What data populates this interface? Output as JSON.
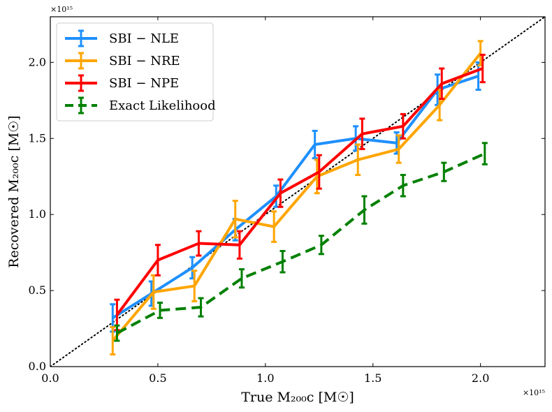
{
  "chart_data": {
    "type": "line",
    "title": "",
    "xlabel": "True M₂₀₀c [M☉]",
    "ylabel": "Recovered M₂₀₀c [M☉]",
    "x_exponent_label": "×10¹⁵",
    "y_exponent_label": "×10¹⁵",
    "xlim": [
      0,
      2.3
    ],
    "ylim": [
      0,
      2.3
    ],
    "xticks": [
      0.0,
      0.5,
      1.0,
      1.5,
      2.0
    ],
    "xtick_labels": [
      "0.0",
      "0.5",
      "1.0",
      "1.5",
      "2.0"
    ],
    "yticks": [
      0.0,
      0.5,
      1.0,
      1.5,
      2.0
    ],
    "ytick_labels": [
      "0.0",
      "0.5",
      "1.0",
      "1.5",
      "2.0"
    ],
    "grid": false,
    "legend_position": "top-left",
    "reference_line": {
      "type": "identity",
      "style": "dotted",
      "color": "#000000"
    },
    "series": [
      {
        "name": "SBI − NLE",
        "color": "#1e90ff",
        "dashed": false,
        "x": [
          0.29,
          0.47,
          0.66,
          0.86,
          1.05,
          1.23,
          1.42,
          1.61,
          1.8,
          1.99
        ],
        "y": [
          0.32,
          0.48,
          0.65,
          0.9,
          1.12,
          1.46,
          1.5,
          1.47,
          1.82,
          1.91
        ],
        "err": [
          0.09,
          0.08,
          0.07,
          0.07,
          0.07,
          0.09,
          0.08,
          0.07,
          0.1,
          0.09
        ]
      },
      {
        "name": "SBI − NRE",
        "color": "#ffa500",
        "dashed": false,
        "x": [
          0.29,
          0.48,
          0.67,
          0.86,
          1.04,
          1.24,
          1.43,
          1.62,
          1.81,
          2.0
        ],
        "y": [
          0.17,
          0.49,
          0.53,
          0.97,
          0.92,
          1.25,
          1.36,
          1.43,
          1.72,
          2.06
        ],
        "err": [
          0.09,
          0.11,
          0.1,
          0.12,
          0.1,
          0.11,
          0.1,
          0.09,
          0.1,
          0.08
        ]
      },
      {
        "name": "SBI − NPE",
        "color": "#ff0000",
        "dashed": false,
        "x": [
          0.31,
          0.5,
          0.69,
          0.88,
          1.07,
          1.25,
          1.45,
          1.64,
          1.82,
          2.01
        ],
        "y": [
          0.34,
          0.7,
          0.81,
          0.8,
          1.14,
          1.28,
          1.53,
          1.58,
          1.86,
          1.96
        ],
        "err": [
          0.1,
          0.1,
          0.08,
          0.09,
          0.09,
          0.11,
          0.1,
          0.08,
          0.1,
          0.09
        ]
      },
      {
        "name": "Exact Likelihood",
        "color": "#008000",
        "dashed": true,
        "x": [
          0.31,
          0.51,
          0.7,
          0.89,
          1.08,
          1.26,
          1.46,
          1.64,
          1.83,
          2.02
        ],
        "y": [
          0.22,
          0.37,
          0.39,
          0.58,
          0.69,
          0.8,
          1.03,
          1.19,
          1.28,
          1.4
        ],
        "err": [
          0.05,
          0.05,
          0.06,
          0.06,
          0.07,
          0.06,
          0.09,
          0.07,
          0.06,
          0.07
        ]
      }
    ]
  }
}
